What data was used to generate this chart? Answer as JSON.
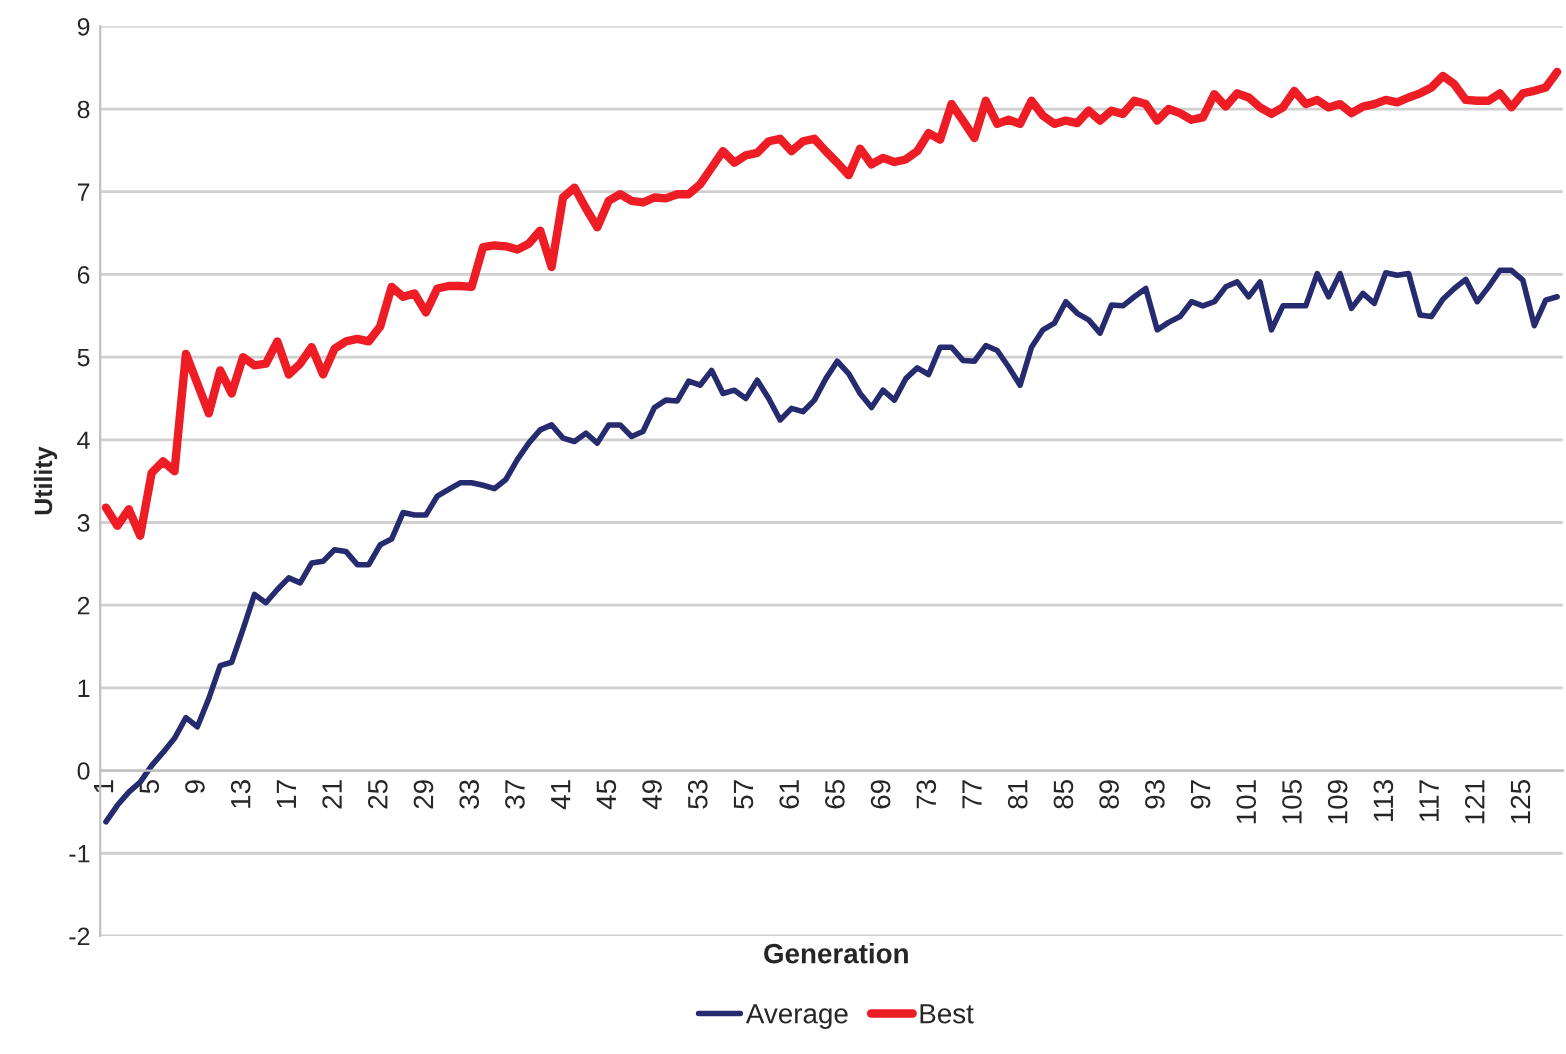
{
  "chart_data": {
    "type": "line",
    "xlabel": "Generation",
    "ylabel": "Utility",
    "categories": [
      "1",
      null,
      null,
      null,
      "5",
      null,
      null,
      null,
      "9",
      null,
      null,
      null,
      "13",
      null,
      null,
      null,
      "17",
      null,
      null,
      null,
      "21",
      null,
      null,
      null,
      "25",
      null,
      null,
      null,
      "29",
      null,
      null,
      null,
      "33",
      null,
      null,
      null,
      "37",
      null,
      null,
      null,
      "41",
      null,
      null,
      null,
      "45",
      null,
      null,
      null,
      "49",
      null,
      null,
      null,
      "53",
      null,
      null,
      null,
      "57",
      null,
      null,
      null,
      "61",
      null,
      null,
      null,
      "65",
      null,
      null,
      null,
      "69",
      null,
      null,
      null,
      "73",
      null,
      null,
      null,
      "77",
      null,
      null,
      null,
      "81",
      null,
      null,
      null,
      "85",
      null,
      null,
      null,
      "89",
      null,
      null,
      null,
      "93",
      null,
      null,
      null,
      "97",
      null,
      null,
      null,
      "101",
      null,
      null,
      null,
      "105",
      null,
      null,
      null,
      "109",
      null,
      null,
      null,
      "113",
      null,
      null,
      null,
      "117",
      null,
      null,
      null,
      "121",
      null,
      null,
      null,
      "125",
      null,
      null,
      null
    ],
    "series": [
      {
        "name": "Average",
        "color": "#262a6e",
        "values": [
          -0.62,
          -0.42,
          -0.26,
          -0.14,
          0.06,
          0.22,
          0.39,
          0.64,
          0.53,
          0.87,
          1.27,
          1.31,
          1.71,
          2.13,
          2.03,
          2.19,
          2.33,
          2.27,
          2.51,
          2.53,
          2.67,
          2.65,
          2.49,
          2.49,
          2.73,
          2.8,
          3.12,
          3.09,
          3.09,
          3.32,
          3.4,
          3.48,
          3.48,
          3.45,
          3.41,
          3.52,
          3.76,
          3.96,
          4.12,
          4.18,
          4.02,
          3.98,
          4.08,
          3.96,
          4.18,
          4.18,
          4.04,
          4.1,
          4.39,
          4.48,
          4.47,
          4.71,
          4.66,
          4.84,
          4.56,
          4.6,
          4.5,
          4.72,
          4.5,
          4.24,
          4.38,
          4.34,
          4.48,
          4.74,
          4.95,
          4.8,
          4.56,
          4.39,
          4.6,
          4.48,
          4.74,
          4.87,
          4.79,
          5.12,
          5.12,
          4.96,
          4.95,
          5.14,
          5.08,
          4.88,
          4.66,
          5.12,
          5.33,
          5.41,
          5.67,
          5.53,
          5.45,
          5.29,
          5.63,
          5.62,
          5.73,
          5.83,
          5.33,
          5.42,
          5.49,
          5.67,
          5.62,
          5.67,
          5.85,
          5.91,
          5.73,
          5.91,
          5.33,
          5.62,
          5.62,
          5.62,
          6.01,
          5.73,
          6.01,
          5.59,
          5.77,
          5.65,
          6.02,
          5.99,
          6.01,
          5.51,
          5.49,
          5.7,
          5.83,
          5.94,
          5.67,
          5.85,
          6.05,
          6.05,
          5.93,
          5.38,
          5.69,
          5.73
        ]
      },
      {
        "name": "Best",
        "color": "#ee1c25",
        "values": [
          3.18,
          2.96,
          3.16,
          2.84,
          3.6,
          3.74,
          3.62,
          5.04,
          4.68,
          4.32,
          4.84,
          4.56,
          5.0,
          4.9,
          4.92,
          5.19,
          4.79,
          4.92,
          5.12,
          4.79,
          5.1,
          5.19,
          5.22,
          5.19,
          5.37,
          5.85,
          5.73,
          5.77,
          5.54,
          5.83,
          5.86,
          5.86,
          5.85,
          6.33,
          6.35,
          6.34,
          6.3,
          6.37,
          6.53,
          6.09,
          6.93,
          7.05,
          6.8,
          6.57,
          6.89,
          6.97,
          6.89,
          6.87,
          6.93,
          6.92,
          6.97,
          6.97,
          7.09,
          7.29,
          7.49,
          7.35,
          7.44,
          7.47,
          7.61,
          7.64,
          7.49,
          7.61,
          7.64,
          7.49,
          7.35,
          7.2,
          7.52,
          7.33,
          7.41,
          7.36,
          7.39,
          7.49,
          7.71,
          7.63,
          8.06,
          7.86,
          7.65,
          8.1,
          7.82,
          7.87,
          7.82,
          8.1,
          7.92,
          7.82,
          7.86,
          7.83,
          7.98,
          7.86,
          7.98,
          7.94,
          8.1,
          8.06,
          7.86,
          8.0,
          7.95,
          7.87,
          7.9,
          8.18,
          8.03,
          8.19,
          8.14,
          8.02,
          7.94,
          8.02,
          8.22,
          8.06,
          8.11,
          8.02,
          8.06,
          7.95,
          8.03,
          8.06,
          8.11,
          8.08,
          8.14,
          8.19,
          8.26,
          8.4,
          8.3,
          8.11,
          8.1,
          8.1,
          8.19,
          8.02,
          8.19,
          8.22,
          8.26,
          8.45
        ]
      }
    ],
    "ylim": [
      -2,
      9
    ],
    "yticks": [
      -2,
      -1,
      0,
      1,
      2,
      3,
      4,
      5,
      6,
      7,
      8,
      9
    ],
    "grid": "y",
    "legend": "bottom",
    "marker": "none",
    "line_style": "solid"
  }
}
